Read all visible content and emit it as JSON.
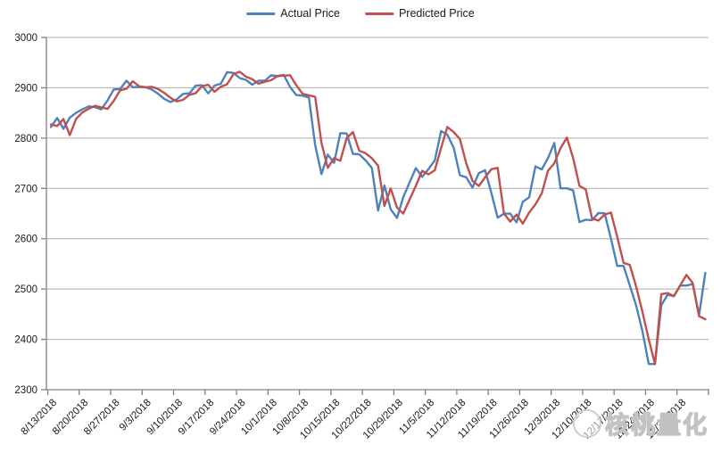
{
  "legend": {
    "actual_label": "Actual Price",
    "predicted_label": "Predicted Price"
  },
  "watermark": {
    "text": "核桃量化",
    "logo_icon": "walnut-circle-logo"
  },
  "colors": {
    "actual_line": "#4F81BD",
    "predicted_line": "#C0504D",
    "gridline": "#ADADAD",
    "axis": "#808080",
    "label_text": "#1a1a1a"
  },
  "chart_data": {
    "type": "line",
    "title": "",
    "xlabel": "",
    "ylabel": "",
    "ylim": [
      2300,
      3000
    ],
    "y_ticks": [
      2300,
      2400,
      2500,
      2600,
      2700,
      2800,
      2900,
      3000
    ],
    "grid": true,
    "legend_position": "top-center",
    "x_tick_labels": [
      "8/13/2018",
      "8/20/2018",
      "8/27/2018",
      "9/3/2018",
      "9/10/2018",
      "9/17/2018",
      "9/24/2018",
      "10/1/2018",
      "10/8/2018",
      "10/15/2018",
      "10/22/2018",
      "10/29/2018",
      "11/5/2018",
      "11/12/2018",
      "11/19/2018",
      "11/26/2018",
      "12/3/2018",
      "12/10/2018",
      "12/17/2018",
      "12/24/2018",
      "12/31/2018"
    ],
    "x": [
      "8/13/2018",
      "8/14/2018",
      "8/15/2018",
      "8/16/2018",
      "8/17/2018",
      "8/20/2018",
      "8/21/2018",
      "8/22/2018",
      "8/23/2018",
      "8/24/2018",
      "8/27/2018",
      "8/28/2018",
      "8/29/2018",
      "8/30/2018",
      "8/31/2018",
      "9/3/2018",
      "9/4/2018",
      "9/5/2018",
      "9/6/2018",
      "9/7/2018",
      "9/10/2018",
      "9/11/2018",
      "9/12/2018",
      "9/13/2018",
      "9/14/2018",
      "9/17/2018",
      "9/18/2018",
      "9/19/2018",
      "9/20/2018",
      "9/21/2018",
      "9/24/2018",
      "9/25/2018",
      "9/26/2018",
      "9/27/2018",
      "9/28/2018",
      "10/1/2018",
      "10/2/2018",
      "10/3/2018",
      "10/4/2018",
      "10/5/2018",
      "10/8/2018",
      "10/9/2018",
      "10/10/2018",
      "10/11/2018",
      "10/12/2018",
      "10/15/2018",
      "10/16/2018",
      "10/17/2018",
      "10/18/2018",
      "10/19/2018",
      "10/22/2018",
      "10/23/2018",
      "10/24/2018",
      "10/25/2018",
      "10/26/2018",
      "10/29/2018",
      "10/30/2018",
      "10/31/2018",
      "11/1/2018",
      "11/2/2018",
      "11/5/2018",
      "11/6/2018",
      "11/7/2018",
      "11/8/2018",
      "11/9/2018",
      "11/12/2018",
      "11/13/2018",
      "11/14/2018",
      "11/15/2018",
      "11/16/2018",
      "11/19/2018",
      "11/20/2018",
      "11/21/2018",
      "11/22/2018",
      "11/23/2018",
      "11/26/2018",
      "11/27/2018",
      "11/28/2018",
      "11/29/2018",
      "11/30/2018",
      "12/3/2018",
      "12/4/2018",
      "12/5/2018",
      "12/6/2018",
      "12/7/2018",
      "12/10/2018",
      "12/11/2018",
      "12/12/2018",
      "12/13/2018",
      "12/14/2018",
      "12/17/2018",
      "12/18/2018",
      "12/19/2018",
      "12/20/2018",
      "12/21/2018",
      "12/24/2018",
      "12/25/2018",
      "12/26/2018",
      "12/27/2018",
      "12/28/2018",
      "12/31/2018",
      "1/1/2019",
      "1/2/2019",
      "1/3/2019",
      "1/4/2019"
    ],
    "series": [
      {
        "name": "Actual Price",
        "color": "#4F81BD",
        "values": [
          2821.9,
          2840.0,
          2818.4,
          2840.7,
          2850.1,
          2857.1,
          2863.0,
          2861.8,
          2857.0,
          2874.7,
          2896.7,
          2897.5,
          2914.0,
          2901.1,
          2901.5,
          2901.5,
          2896.7,
          2888.6,
          2878.1,
          2871.7,
          2877.1,
          2887.9,
          2888.9,
          2904.2,
          2905.0,
          2888.8,
          2904.3,
          2908.0,
          2930.8,
          2929.7,
          2919.4,
          2915.6,
          2906.0,
          2914.0,
          2914.0,
          2924.6,
          2923.4,
          2925.5,
          2901.6,
          2885.6,
          2884.4,
          2880.3,
          2785.7,
          2728.4,
          2767.1,
          2750.8,
          2809.9,
          2809.2,
          2768.8,
          2767.8,
          2755.9,
          2740.7,
          2656.1,
          2705.6,
          2658.7,
          2641.3,
          2682.6,
          2711.7,
          2740.4,
          2723.1,
          2738.3,
          2755.5,
          2813.9,
          2806.8,
          2781.0,
          2726.2,
          2722.2,
          2701.6,
          2730.2,
          2736.3,
          2690.7,
          2641.9,
          2649.9,
          2649.9,
          2632.6,
          2673.5,
          2682.2,
          2743.8,
          2737.8,
          2760.2,
          2790.4,
          2700.1,
          2700.1,
          2696.0,
          2633.1,
          2637.7,
          2636.8,
          2651.1,
          2650.5,
          2600.0,
          2545.9,
          2546.2,
          2507.0,
          2467.4,
          2416.6,
          2351.1,
          2351.1,
          2467.7,
          2488.8,
          2485.7,
          2506.9,
          2506.9,
          2510.0,
          2447.9,
          2531.9
        ]
      },
      {
        "name": "Predicted Price",
        "color": "#C0504D",
        "values": [
          2827,
          2824,
          2838,
          2806,
          2838,
          2851,
          2858,
          2864,
          2861,
          2858,
          2874,
          2895,
          2898,
          2913,
          2903,
          2901,
          2902,
          2898,
          2890,
          2880,
          2873,
          2876,
          2886,
          2889,
          2903,
          2906,
          2892,
          2902,
          2907,
          2927,
          2932,
          2922,
          2917,
          2908,
          2912,
          2915,
          2923,
          2924,
          2925,
          2905,
          2888,
          2885,
          2882,
          2790,
          2741,
          2760,
          2755,
          2800,
          2812,
          2775,
          2770,
          2760,
          2745,
          2665,
          2700,
          2662,
          2650,
          2678,
          2705,
          2735,
          2728,
          2736,
          2780,
          2822,
          2812,
          2798,
          2750,
          2715,
          2705,
          2722,
          2738,
          2741,
          2650,
          2634,
          2648,
          2630,
          2652,
          2668,
          2690,
          2735,
          2750,
          2780,
          2801,
          2760,
          2705,
          2698,
          2640,
          2636,
          2648,
          2652,
          2604,
          2552,
          2548,
          2505,
          2455,
          2400,
          2351,
          2490,
          2492,
          2486,
          2507,
          2528,
          2512,
          2446,
          2440
        ]
      }
    ]
  }
}
